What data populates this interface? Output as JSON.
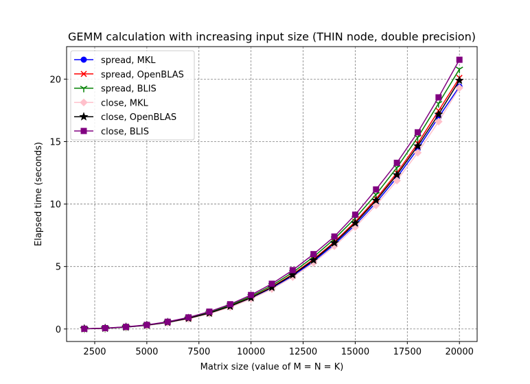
{
  "chart_data": {
    "type": "line",
    "title": "GEMM calculation with increasing input size (THIN node, double precision)",
    "xlabel": "Matrix size (value of M = N = K)",
    "ylabel": "Elapsed time (seconds)",
    "xlim": [
      1150,
      20850
    ],
    "ylim": [
      -1.0,
      22.6
    ],
    "xticks": [
      2500,
      5000,
      7500,
      10000,
      12500,
      15000,
      17500,
      20000
    ],
    "xtick_labels": [
      "2500",
      "5000",
      "7500",
      "10000",
      "12500",
      "15000",
      "17500",
      "20000"
    ],
    "yticks": [
      0,
      5,
      10,
      15,
      20
    ],
    "ytick_labels": [
      "0",
      "5",
      "10",
      "15",
      "20"
    ],
    "grid": true,
    "grid_style": "dashed",
    "legend_position": "upper-left",
    "x": [
      2000,
      3000,
      4000,
      5000,
      6000,
      7000,
      8000,
      9000,
      10000,
      11000,
      12000,
      13000,
      14000,
      15000,
      16000,
      17000,
      18000,
      19000,
      20000
    ],
    "series": [
      {
        "name": "spread, MKL",
        "color": "#0000ff",
        "marker": "circle",
        "values": [
          0.02,
          0.06,
          0.15,
          0.29,
          0.52,
          0.83,
          1.25,
          1.79,
          2.45,
          3.27,
          4.25,
          5.41,
          6.77,
          8.33,
          10.11,
          12.13,
          14.41,
          16.95,
          19.4
        ]
      },
      {
        "name": "spread, OpenBLAS",
        "color": "#ff0000",
        "marker": "x",
        "values": [
          0.02,
          0.06,
          0.16,
          0.3,
          0.54,
          0.86,
          1.29,
          1.84,
          2.52,
          3.36,
          4.38,
          5.58,
          6.97,
          8.58,
          10.42,
          12.5,
          14.85,
          17.47,
          20.1
        ]
      },
      {
        "name": "spread, BLIS",
        "color": "#008000",
        "marker": "tri-down",
        "values": [
          0.02,
          0.06,
          0.16,
          0.31,
          0.55,
          0.89,
          1.34,
          1.91,
          2.61,
          3.48,
          4.53,
          5.77,
          7.21,
          8.87,
          10.77,
          12.92,
          15.34,
          18.05,
          20.8
        ]
      },
      {
        "name": "close, MKL",
        "color": "#ffc0cb",
        "marker": "diamond",
        "values": [
          0.02,
          0.06,
          0.15,
          0.28,
          0.51,
          0.81,
          1.22,
          1.75,
          2.4,
          3.2,
          4.16,
          5.3,
          6.63,
          8.16,
          9.9,
          11.88,
          14.11,
          16.6,
          19.3
        ]
      },
      {
        "name": "close, OpenBLAS",
        "color": "#000000",
        "marker": "star",
        "values": [
          0.02,
          0.06,
          0.15,
          0.3,
          0.53,
          0.85,
          1.27,
          1.82,
          2.5,
          3.33,
          4.33,
          5.51,
          6.89,
          8.48,
          10.29,
          12.34,
          14.65,
          17.18,
          19.9
        ]
      },
      {
        "name": "close, BLIS",
        "color": "#800080",
        "marker": "square",
        "values": [
          0.02,
          0.07,
          0.17,
          0.33,
          0.58,
          0.93,
          1.39,
          1.98,
          2.72,
          3.62,
          4.71,
          5.99,
          7.4,
          9.15,
          11.17,
          13.3,
          15.74,
          18.54,
          21.55
        ]
      }
    ]
  }
}
